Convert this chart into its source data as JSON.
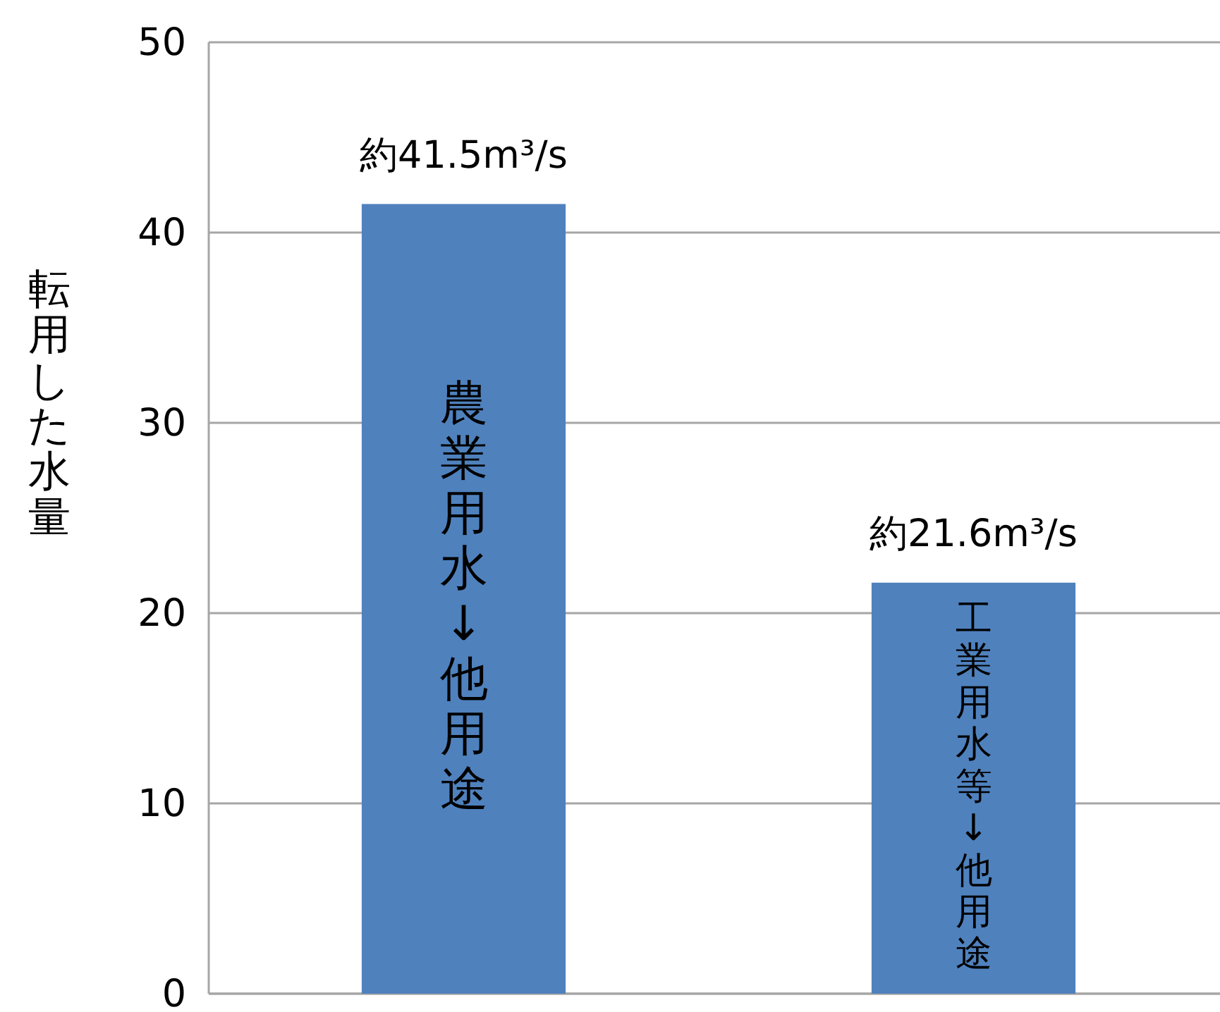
{
  "chart_data": {
    "type": "bar",
    "ylabel": "転用した水量",
    "categories": [
      "農業用水↓他用途",
      "工業用水等↓他用途"
    ],
    "values": [
      41.5,
      21.6
    ],
    "value_labels": [
      "約41.5m³/s",
      "約21.6m³/s"
    ],
    "color": "#4f81bd",
    "ylim": [
      0,
      50
    ],
    "yticks": [
      0,
      10,
      20,
      30,
      40,
      50
    ],
    "grid": "y"
  }
}
